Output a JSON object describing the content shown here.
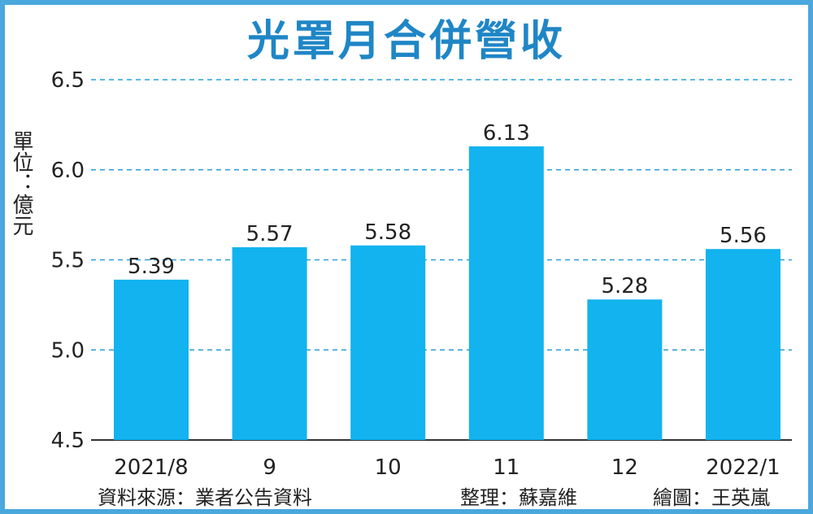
{
  "title": "光罩月合併營收",
  "unit_label": "單位：億元",
  "source": "資料來源：業者公告資料",
  "editor": "整理：蘇嘉維",
  "illustrator": "繪圖：王英嵐",
  "colors": {
    "bar": "#12b3ee",
    "grid": "#2a9fd6",
    "title": "#1f86c6",
    "frame": "#4aa8dd"
  },
  "chart_data": {
    "type": "bar",
    "title": "光罩月合併營收",
    "ylabel": "單位：億元",
    "categories": [
      "2021/8",
      "9",
      "10",
      "11",
      "12",
      "2022/1"
    ],
    "values": [
      5.39,
      5.57,
      5.58,
      6.13,
      5.28,
      5.56
    ],
    "value_labels": [
      "5.39",
      "5.57",
      "5.58",
      "6.13",
      "5.28",
      "5.56"
    ],
    "ylim": [
      4.5,
      6.5
    ],
    "yticks": [
      "4.5",
      "5.0",
      "5.5",
      "6.0",
      "6.5"
    ],
    "grid": "dashed horizontal",
    "legend": "none"
  }
}
